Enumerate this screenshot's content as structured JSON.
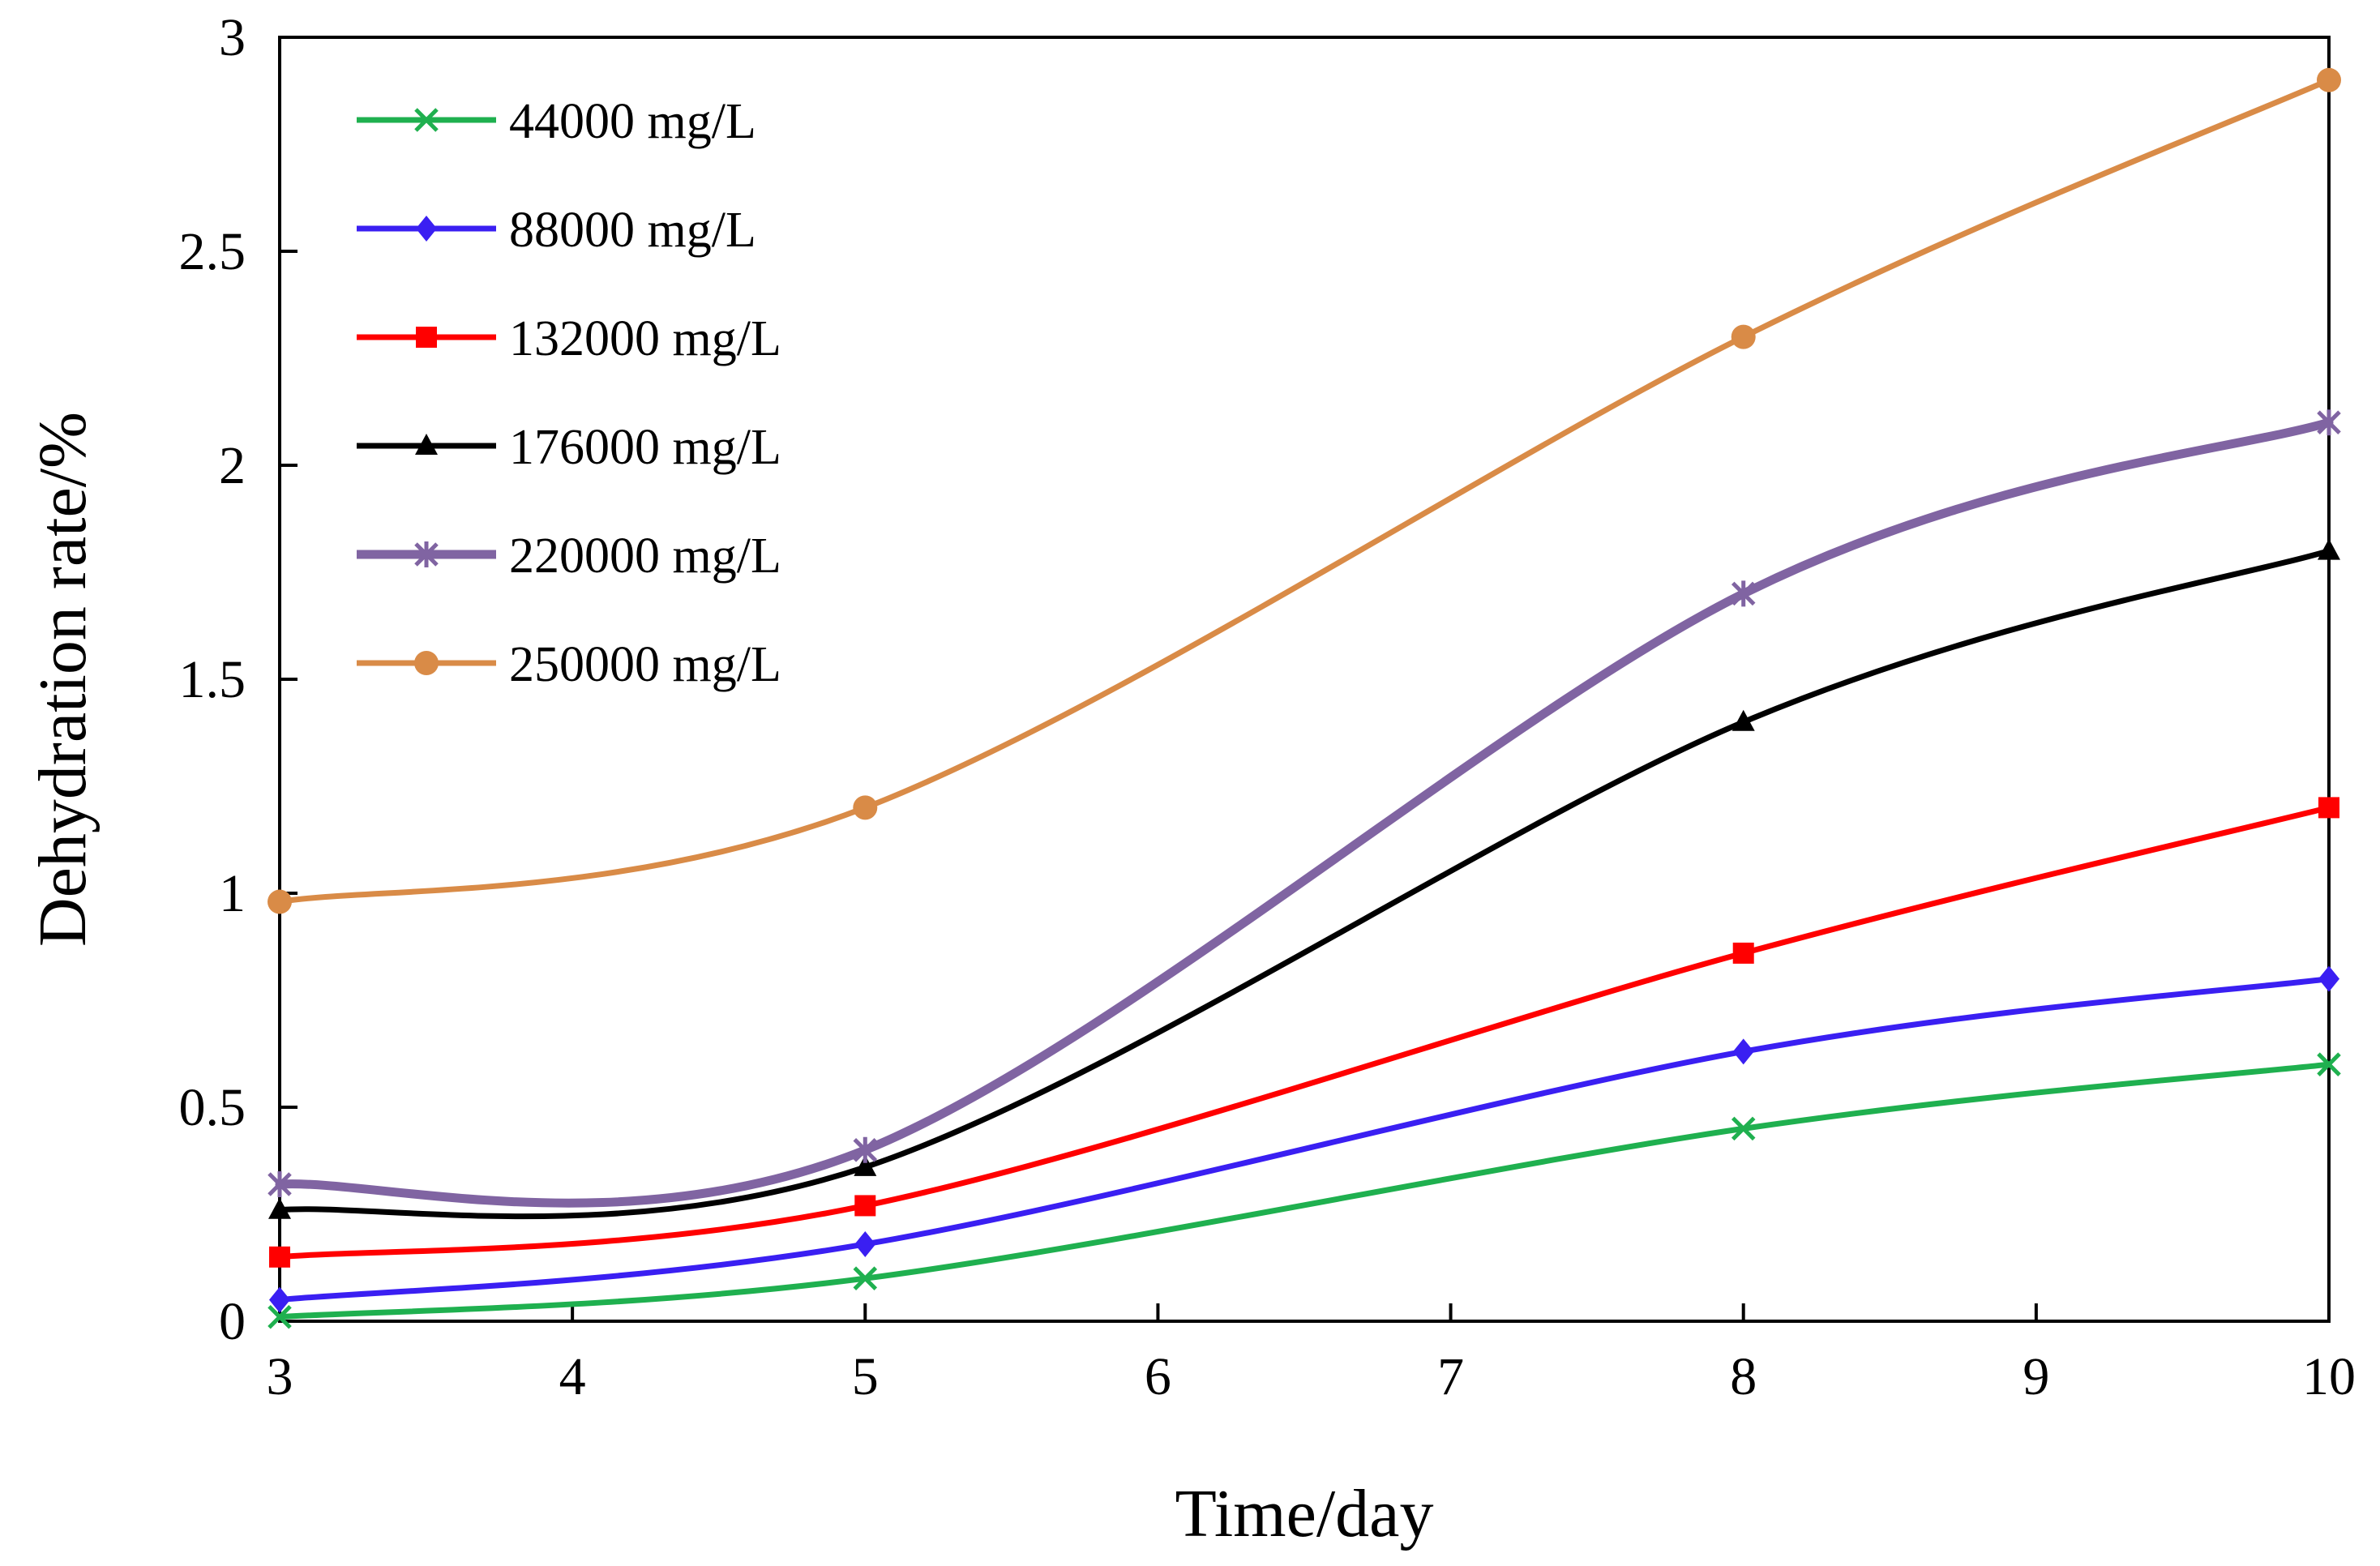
{
  "chart_data": {
    "type": "line",
    "title": "",
    "xlabel": "Time/day",
    "ylabel": "Dehydration rate/%",
    "xlim": [
      3,
      10
    ],
    "ylim": [
      0,
      3
    ],
    "x_ticks": [
      "3",
      "4",
      "5",
      "6",
      "7",
      "8",
      "9",
      "10"
    ],
    "y_ticks": [
      "0",
      "0.5",
      "1",
      "1.5",
      "2",
      "2.5",
      "3"
    ],
    "grid": false,
    "legend_position": "top-left",
    "x": [
      3,
      5,
      8,
      10
    ],
    "series": [
      {
        "name": "44000 mg/L",
        "color": "#1fb04f",
        "marker": "x",
        "smooth": true,
        "values": [
          0.01,
          0.1,
          0.45,
          0.6
        ]
      },
      {
        "name": "88000 mg/L",
        "color": "#3a1ff2",
        "marker": "diamond",
        "smooth": true,
        "values": [
          0.05,
          0.18,
          0.63,
          0.8
        ]
      },
      {
        "name": "132000 mg/L",
        "color": "#ff0000",
        "marker": "square",
        "smooth": true,
        "values": [
          0.15,
          0.27,
          0.86,
          1.2
        ]
      },
      {
        "name": "176000 mg/L",
        "color": "#000000",
        "marker": "triangle",
        "smooth": true,
        "values": [
          0.26,
          0.36,
          1.4,
          1.8
        ]
      },
      {
        "name": "220000 mg/L",
        "color": "#8064a2",
        "marker": "asterisk",
        "smooth": true,
        "values": [
          0.32,
          0.4,
          1.7,
          2.1
        ]
      },
      {
        "name": "250000 mg/L",
        "color": "#d98b47",
        "marker": "circle",
        "smooth": true,
        "values": [
          0.98,
          1.2,
          2.3,
          2.9
        ]
      }
    ]
  }
}
